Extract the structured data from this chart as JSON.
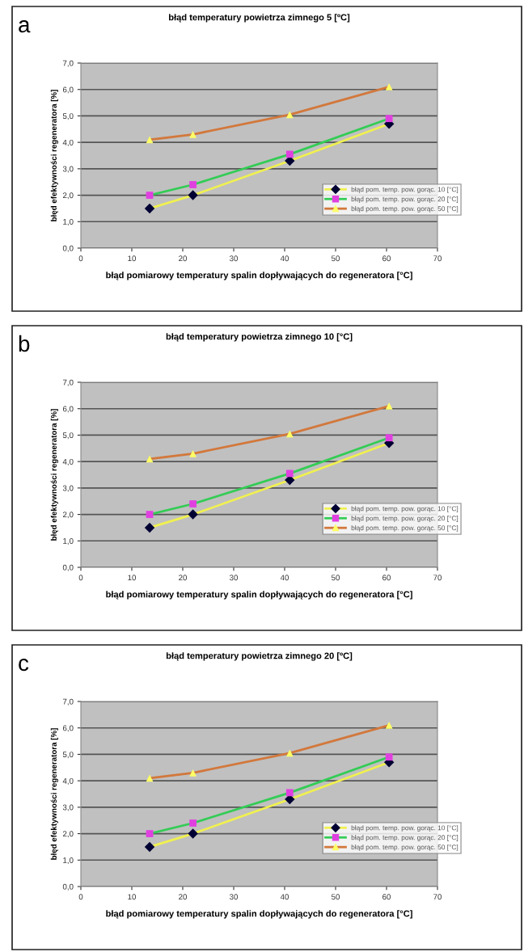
{
  "chart_data": [
    {
      "type": "line",
      "title": "błąd temperatury powietrza zimnego 5 [ºC]",
      "xlabel": "błąd pomiarowy temperatury spalin dopływających do regeneratora [°C]",
      "ylabel": "błęd efektywności regeneratora [%]",
      "annotations": [
        "a"
      ],
      "x": [
        13.5,
        22,
        41,
        60.5
      ],
      "xlim": [
        0,
        70
      ],
      "xticks": [
        0,
        10,
        20,
        30,
        40,
        50,
        60,
        70
      ],
      "ylim": [
        0,
        7
      ],
      "yticks": [
        {
          "value": 0,
          "label": "0,0"
        },
        {
          "value": 1,
          "label": "1,0"
        },
        {
          "value": 2,
          "label": "2,0"
        },
        {
          "value": 3,
          "label": "3,0"
        },
        {
          "value": 4,
          "label": "4,0"
        },
        {
          "value": 5,
          "label": "5,0"
        },
        {
          "value": 6,
          "label": "6,0"
        },
        {
          "value": 7,
          "label": "7,0"
        }
      ],
      "grid": "y",
      "legend": "right",
      "series": [
        {
          "name": "błąd pom. temp. pow. gorąc. 10 [°C]",
          "color": "#f0f050",
          "marker": "diamond",
          "colors": [
            "#000033",
            "#000033",
            "#000033",
            "#000033"
          ],
          "values": [
            1.5,
            2.0,
            3.3,
            4.7
          ]
        },
        {
          "name": "błąd pom. temp. pow. gorąc. 20 [°C]",
          "color": "#33cc55",
          "marker": "square",
          "colors": [
            "#e040e0",
            "#e040e0",
            "#e040e0",
            "#e040e0"
          ],
          "values": [
            2.0,
            2.4,
            3.55,
            4.9
          ]
        },
        {
          "name": "błąd pom. temp. pow. gorąc. 50 [°C]",
          "color": "#d2783c",
          "marker": "triangle",
          "colors": [
            "#ffff66",
            "#ffff66",
            "#ffff66",
            "#ffff66"
          ],
          "values": [
            4.1,
            4.3,
            5.05,
            6.1
          ]
        }
      ]
    },
    {
      "type": "line",
      "title": "błąd temperatury powietrza zimnego 10 [°C]",
      "xlabel": "błąd pomiarowy temperatury spalin dopływających do regeneratora [°C]",
      "ylabel": "błęd efektywności regeneratora [%]",
      "annotations": [
        "b"
      ],
      "x": [
        13.5,
        22,
        41,
        60.5
      ],
      "xlim": [
        0,
        70
      ],
      "xticks": [
        0,
        10,
        20,
        30,
        40,
        50,
        60,
        70
      ],
      "ylim": [
        0,
        7
      ],
      "yticks": [
        {
          "value": 0,
          "label": "0,0"
        },
        {
          "value": 1,
          "label": "1,0"
        },
        {
          "value": 2,
          "label": "2,0"
        },
        {
          "value": 3,
          "label": "3,0"
        },
        {
          "value": 4,
          "label": "4,0"
        },
        {
          "value": 5,
          "label": "5,0"
        },
        {
          "value": 6,
          "label": "6,0"
        },
        {
          "value": 7,
          "label": "7,0"
        }
      ],
      "grid": "y",
      "legend": "right",
      "series": [
        {
          "name": "błąd pom. temp. pow. gorąc. 10 [°C]",
          "color": "#f0f050",
          "marker": "diamond",
          "colors": [
            "#000033",
            "#000033",
            "#000033",
            "#000033"
          ],
          "values": [
            1.5,
            2.0,
            3.3,
            4.7
          ]
        },
        {
          "name": "błąd pom. temp. pow. gorąc. 20 [°C]",
          "color": "#33cc55",
          "marker": "square",
          "colors": [
            "#e040e0",
            "#e040e0",
            "#e040e0",
            "#e040e0"
          ],
          "values": [
            2.0,
            2.4,
            3.55,
            4.9
          ]
        },
        {
          "name": "błąd pom. temp. pow. gorąc. 50 [°C]",
          "color": "#d2783c",
          "marker": "triangle",
          "colors": [
            "#ffff66",
            "#ffff66",
            "#ffff66",
            "#ffff66"
          ],
          "values": [
            4.1,
            4.3,
            5.05,
            6.1
          ]
        }
      ]
    },
    {
      "type": "line",
      "title": "błąd temperatury powietrza zimnego 20 [ºC]",
      "xlabel": "błąd pomiarowy temperatury spalin dopływających do regeneratora [°C]",
      "ylabel": "błęd efektywności regeneratora [%]",
      "annotations": [
        "c"
      ],
      "x": [
        13.5,
        22,
        41,
        60.5
      ],
      "xlim": [
        0,
        70
      ],
      "xticks": [
        0,
        10,
        20,
        30,
        40,
        50,
        60,
        70
      ],
      "ylim": [
        0,
        7
      ],
      "yticks": [
        {
          "value": 0,
          "label": "0,0"
        },
        {
          "value": 1,
          "label": "1,0"
        },
        {
          "value": 2,
          "label": "2,0"
        },
        {
          "value": 3,
          "label": "3,0"
        },
        {
          "value": 4,
          "label": "4,0"
        },
        {
          "value": 5,
          "label": "5,0"
        },
        {
          "value": 6,
          "label": "6,0"
        },
        {
          "value": 7,
          "label": "7,0"
        }
      ],
      "grid": "y",
      "legend": "right",
      "series": [
        {
          "name": "błąd pom. temp. pow. gorąc. 10 [°C]",
          "color": "#f0f050",
          "marker": "diamond",
          "colors": [
            "#000033",
            "#000033",
            "#000033",
            "#000033"
          ],
          "values": [
            1.5,
            2.0,
            3.3,
            4.7
          ]
        },
        {
          "name": "błąd pom. temp. pow. gorąc. 20 [°C]",
          "color": "#33cc55",
          "marker": "square",
          "colors": [
            "#e040e0",
            "#e040e0",
            "#e040e0",
            "#e040e0"
          ],
          "values": [
            2.0,
            2.4,
            3.55,
            4.9
          ]
        },
        {
          "name": "błąd pom. temp. pow. gorąc. 50 [°C]",
          "color": "#d2783c",
          "marker": "triangle",
          "colors": [
            "#ffff66",
            "#ffff66",
            "#ffff66",
            "#ffff66"
          ],
          "values": [
            4.1,
            4.3,
            5.05,
            6.1
          ]
        }
      ]
    }
  ]
}
